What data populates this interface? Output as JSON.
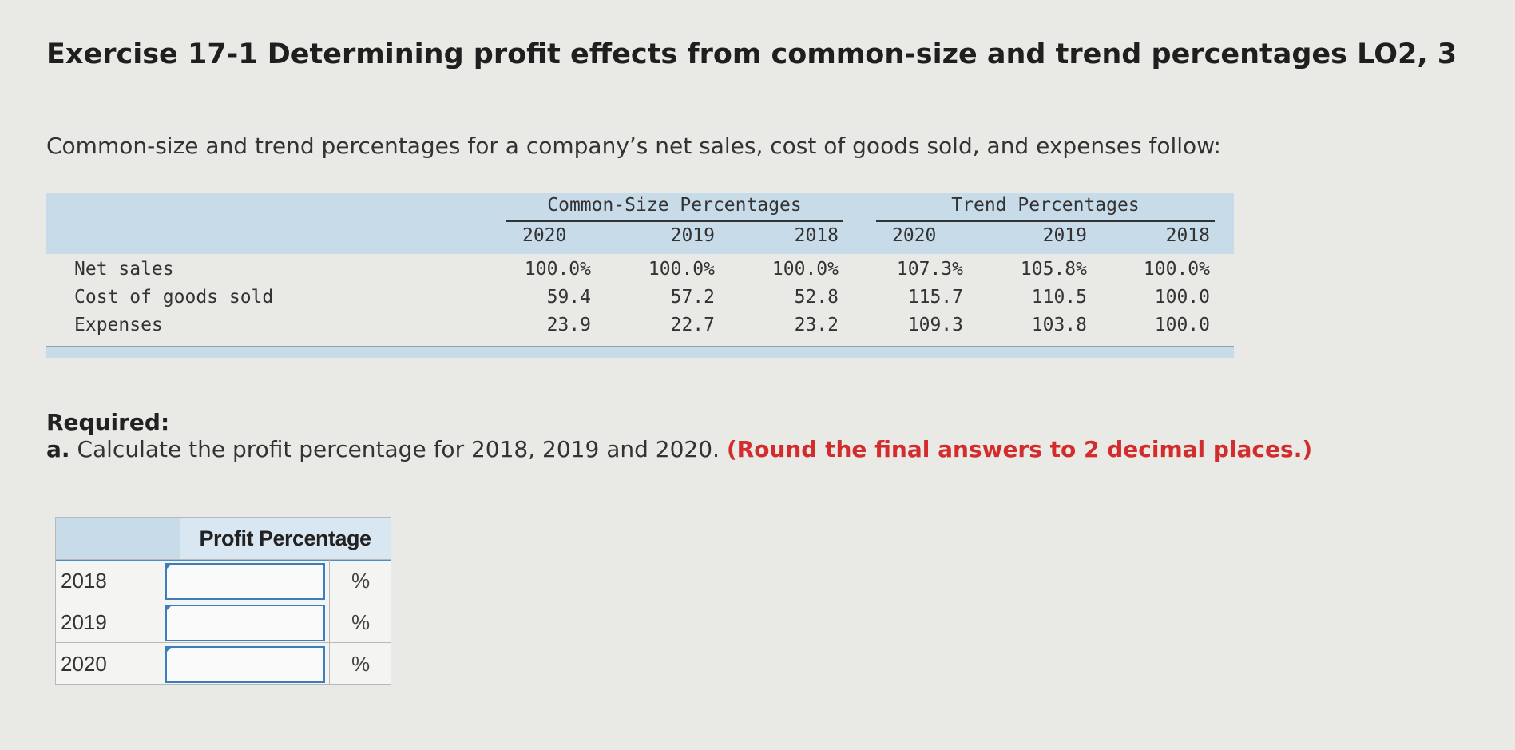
{
  "header": {
    "title": "Exercise 17-1 Determining profit effects from common-size and trend percentages LO2, 3"
  },
  "intro": "Common-size and trend percentages for a company’s net sales, cost of goods sold, and expenses follow:",
  "table": {
    "groups": [
      {
        "title": "Common-Size Percentages",
        "years": [
          "2020",
          "2019",
          "2018"
        ]
      },
      {
        "title": "Trend Percentages",
        "years": [
          "2020",
          "2019",
          "2018"
        ]
      }
    ],
    "rows": [
      [
        "Net sales",
        "100.0%",
        "100.0%",
        "100.0%",
        "107.3%",
        "105.8%",
        "100.0%"
      ],
      [
        "Cost of goods sold",
        "59.4",
        "57.2",
        "52.8",
        "115.7",
        "110.5",
        "100.0"
      ],
      [
        "Expenses",
        "23.9",
        "22.7",
        "23.2",
        "109.3",
        "103.8",
        "100.0"
      ]
    ]
  },
  "required": {
    "label": "Required:",
    "part": "a.",
    "text": "Calculate the profit percentage for 2018, 2019 and 2020.",
    "note": "(Round the final answers to 2 decimal places.)"
  },
  "answer_table": {
    "header": "Profit Percentage",
    "rows": [
      {
        "year": "2018",
        "unit": "%"
      },
      {
        "year": "2019",
        "unit": "%"
      },
      {
        "year": "2020",
        "unit": "%"
      }
    ]
  }
}
